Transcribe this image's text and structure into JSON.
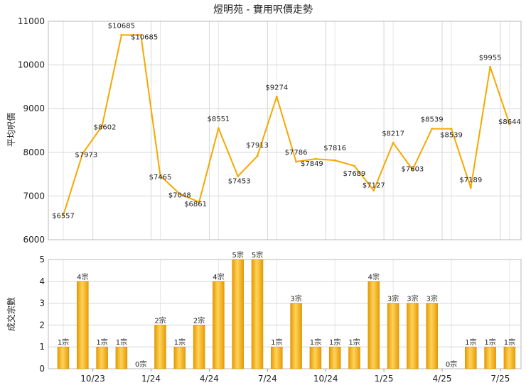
{
  "chart_data": {
    "title": "煜明苑 - 實用呎價走勢",
    "x_tick_labels": [
      "10/23",
      "1/24",
      "4/24",
      "7/24",
      "10/24",
      "1/25",
      "4/25",
      "7/25"
    ],
    "price": {
      "type": "line",
      "ylabel": "平均呎價",
      "ylim": [
        6000,
        11000
      ],
      "yticks": [
        6000,
        7000,
        8000,
        9000,
        10000,
        11000
      ],
      "color": "#f7a800",
      "points": [
        {
          "i": 0,
          "value": 6557,
          "label": "$6557"
        },
        {
          "i": 1,
          "value": 7973,
          "label": "$7973"
        },
        {
          "i": 2,
          "value": 8602,
          "label": "$8602"
        },
        {
          "i": 3,
          "value": 10685,
          "label": "$10685"
        },
        {
          "i": 4,
          "value": 10685,
          "label": "$10685"
        },
        {
          "i": 5,
          "value": 7465,
          "label": "$7465"
        },
        {
          "i": 6,
          "value": 7048,
          "label": "$7048"
        },
        {
          "i": 7,
          "value": 6861,
          "label": "$6861"
        },
        {
          "i": 8,
          "value": 8551,
          "label": "$8551"
        },
        {
          "i": 9,
          "value": 7453,
          "label": "$7453"
        },
        {
          "i": 10,
          "value": 7913,
          "label": "$7913"
        },
        {
          "i": 11,
          "value": 9274,
          "label": "$9274"
        },
        {
          "i": 12,
          "value": 7786,
          "label": "$7786"
        },
        {
          "i": 13,
          "value": 7849,
          "label": "$7849"
        },
        {
          "i": 14,
          "value": 7816,
          "label": "$7816"
        },
        {
          "i": 15,
          "value": 7689,
          "label": "$7689"
        },
        {
          "i": 16,
          "value": 7127,
          "label": "$7127"
        },
        {
          "i": 17,
          "value": 8217,
          "label": "$8217"
        },
        {
          "i": 18,
          "value": 7603,
          "label": "$7603"
        },
        {
          "i": 19,
          "value": 8539,
          "label": "$8539"
        },
        {
          "i": 20,
          "value": 8539,
          "label": "$8539"
        },
        {
          "i": 21,
          "value": 7189,
          "label": "$7189"
        },
        {
          "i": 22,
          "value": 9955,
          "label": "$9955"
        },
        {
          "i": 23,
          "value": 8644,
          "label": "$8644"
        }
      ]
    },
    "volume": {
      "type": "bar",
      "ylabel": "成交宗數",
      "ylim": [
        0,
        5
      ],
      "yticks": [
        0,
        1,
        2,
        3,
        4,
        5
      ],
      "color": "#f7a800",
      "unit": "宗",
      "values": [
        1,
        4,
        1,
        1,
        0,
        2,
        1,
        2,
        4,
        5,
        5,
        1,
        3,
        1,
        1,
        1,
        4,
        3,
        3,
        3,
        0,
        1,
        1,
        1
      ]
    }
  }
}
